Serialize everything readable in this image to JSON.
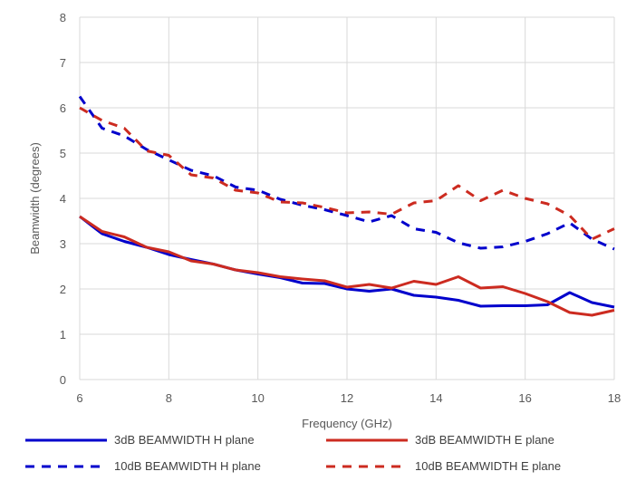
{
  "chart_data": {
    "type": "line",
    "xlabel": "Frequency (GHz)",
    "ylabel": "Beamwidth (degrees)",
    "xlim": [
      6,
      18
    ],
    "ylim": [
      0,
      8
    ],
    "x_ticks": [
      "6",
      "8",
      "10",
      "12",
      "14",
      "16",
      "18"
    ],
    "y_ticks": [
      "0",
      "1",
      "2",
      "3",
      "4",
      "5",
      "6",
      "7",
      "8"
    ],
    "grid": true,
    "legend_position": "bottom",
    "series": [
      {
        "name": "3dB BEAMWIDTH H plane",
        "color": "#0000cc",
        "style": "solid",
        "x": [
          6,
          6.5,
          7,
          7.5,
          8,
          8.5,
          9,
          9.5,
          10,
          10.5,
          11,
          11.5,
          12,
          12.5,
          13,
          13.5,
          14,
          14.5,
          15,
          15.5,
          16,
          16.5,
          17,
          17.5,
          18
        ],
        "y": [
          3.6,
          3.22,
          3.05,
          2.92,
          2.76,
          2.65,
          2.55,
          2.42,
          2.33,
          2.25,
          2.13,
          2.12,
          2.0,
          1.95,
          2.0,
          1.86,
          1.82,
          1.75,
          1.62,
          1.63,
          1.63,
          1.65,
          1.92,
          1.7,
          1.6
        ]
      },
      {
        "name": "3dB BEAMWIDTH E plane",
        "color": "#cc2b20",
        "style": "solid",
        "x": [
          6,
          6.5,
          7,
          7.5,
          8,
          8.5,
          9,
          9.5,
          10,
          10.5,
          11,
          11.5,
          12,
          12.5,
          13,
          13.5,
          14,
          14.5,
          15,
          15.5,
          16,
          16.5,
          17,
          17.5,
          18
        ],
        "y": [
          3.6,
          3.27,
          3.15,
          2.92,
          2.82,
          2.62,
          2.55,
          2.42,
          2.36,
          2.27,
          2.22,
          2.18,
          2.04,
          2.1,
          2.02,
          2.17,
          2.1,
          2.27,
          2.02,
          2.05,
          1.9,
          1.72,
          1.48,
          1.42,
          1.53
        ]
      },
      {
        "name": "10dB BEAMWIDTH H plane",
        "color": "#0000cc",
        "style": "dashed",
        "x": [
          6,
          6.5,
          7,
          7.5,
          8,
          8.5,
          9,
          9.5,
          10,
          10.5,
          11,
          11.5,
          12,
          12.5,
          13,
          13.5,
          14,
          14.5,
          15,
          15.5,
          16,
          16.5,
          17,
          17.5,
          18
        ],
        "y": [
          6.25,
          5.55,
          5.38,
          5.08,
          4.85,
          4.62,
          4.5,
          4.25,
          4.18,
          3.98,
          3.85,
          3.75,
          3.62,
          3.48,
          3.62,
          3.33,
          3.25,
          3.02,
          2.9,
          2.93,
          3.05,
          3.22,
          3.46,
          3.1,
          2.88
        ]
      },
      {
        "name": "10dB BEAMWIDTH E plane",
        "color": "#cc2b20",
        "style": "dashed",
        "x": [
          6,
          6.5,
          7,
          7.5,
          8,
          8.5,
          9,
          9.5,
          10,
          10.5,
          11,
          11.5,
          12,
          12.5,
          13,
          13.5,
          14,
          14.5,
          15,
          15.5,
          16,
          16.5,
          17,
          17.5,
          18
        ],
        "y": [
          6.0,
          5.72,
          5.55,
          5.05,
          4.95,
          4.52,
          4.45,
          4.18,
          4.12,
          3.92,
          3.9,
          3.8,
          3.68,
          3.7,
          3.65,
          3.9,
          3.95,
          4.28,
          3.95,
          4.18,
          4.0,
          3.88,
          3.62,
          3.1,
          3.33
        ]
      }
    ]
  }
}
